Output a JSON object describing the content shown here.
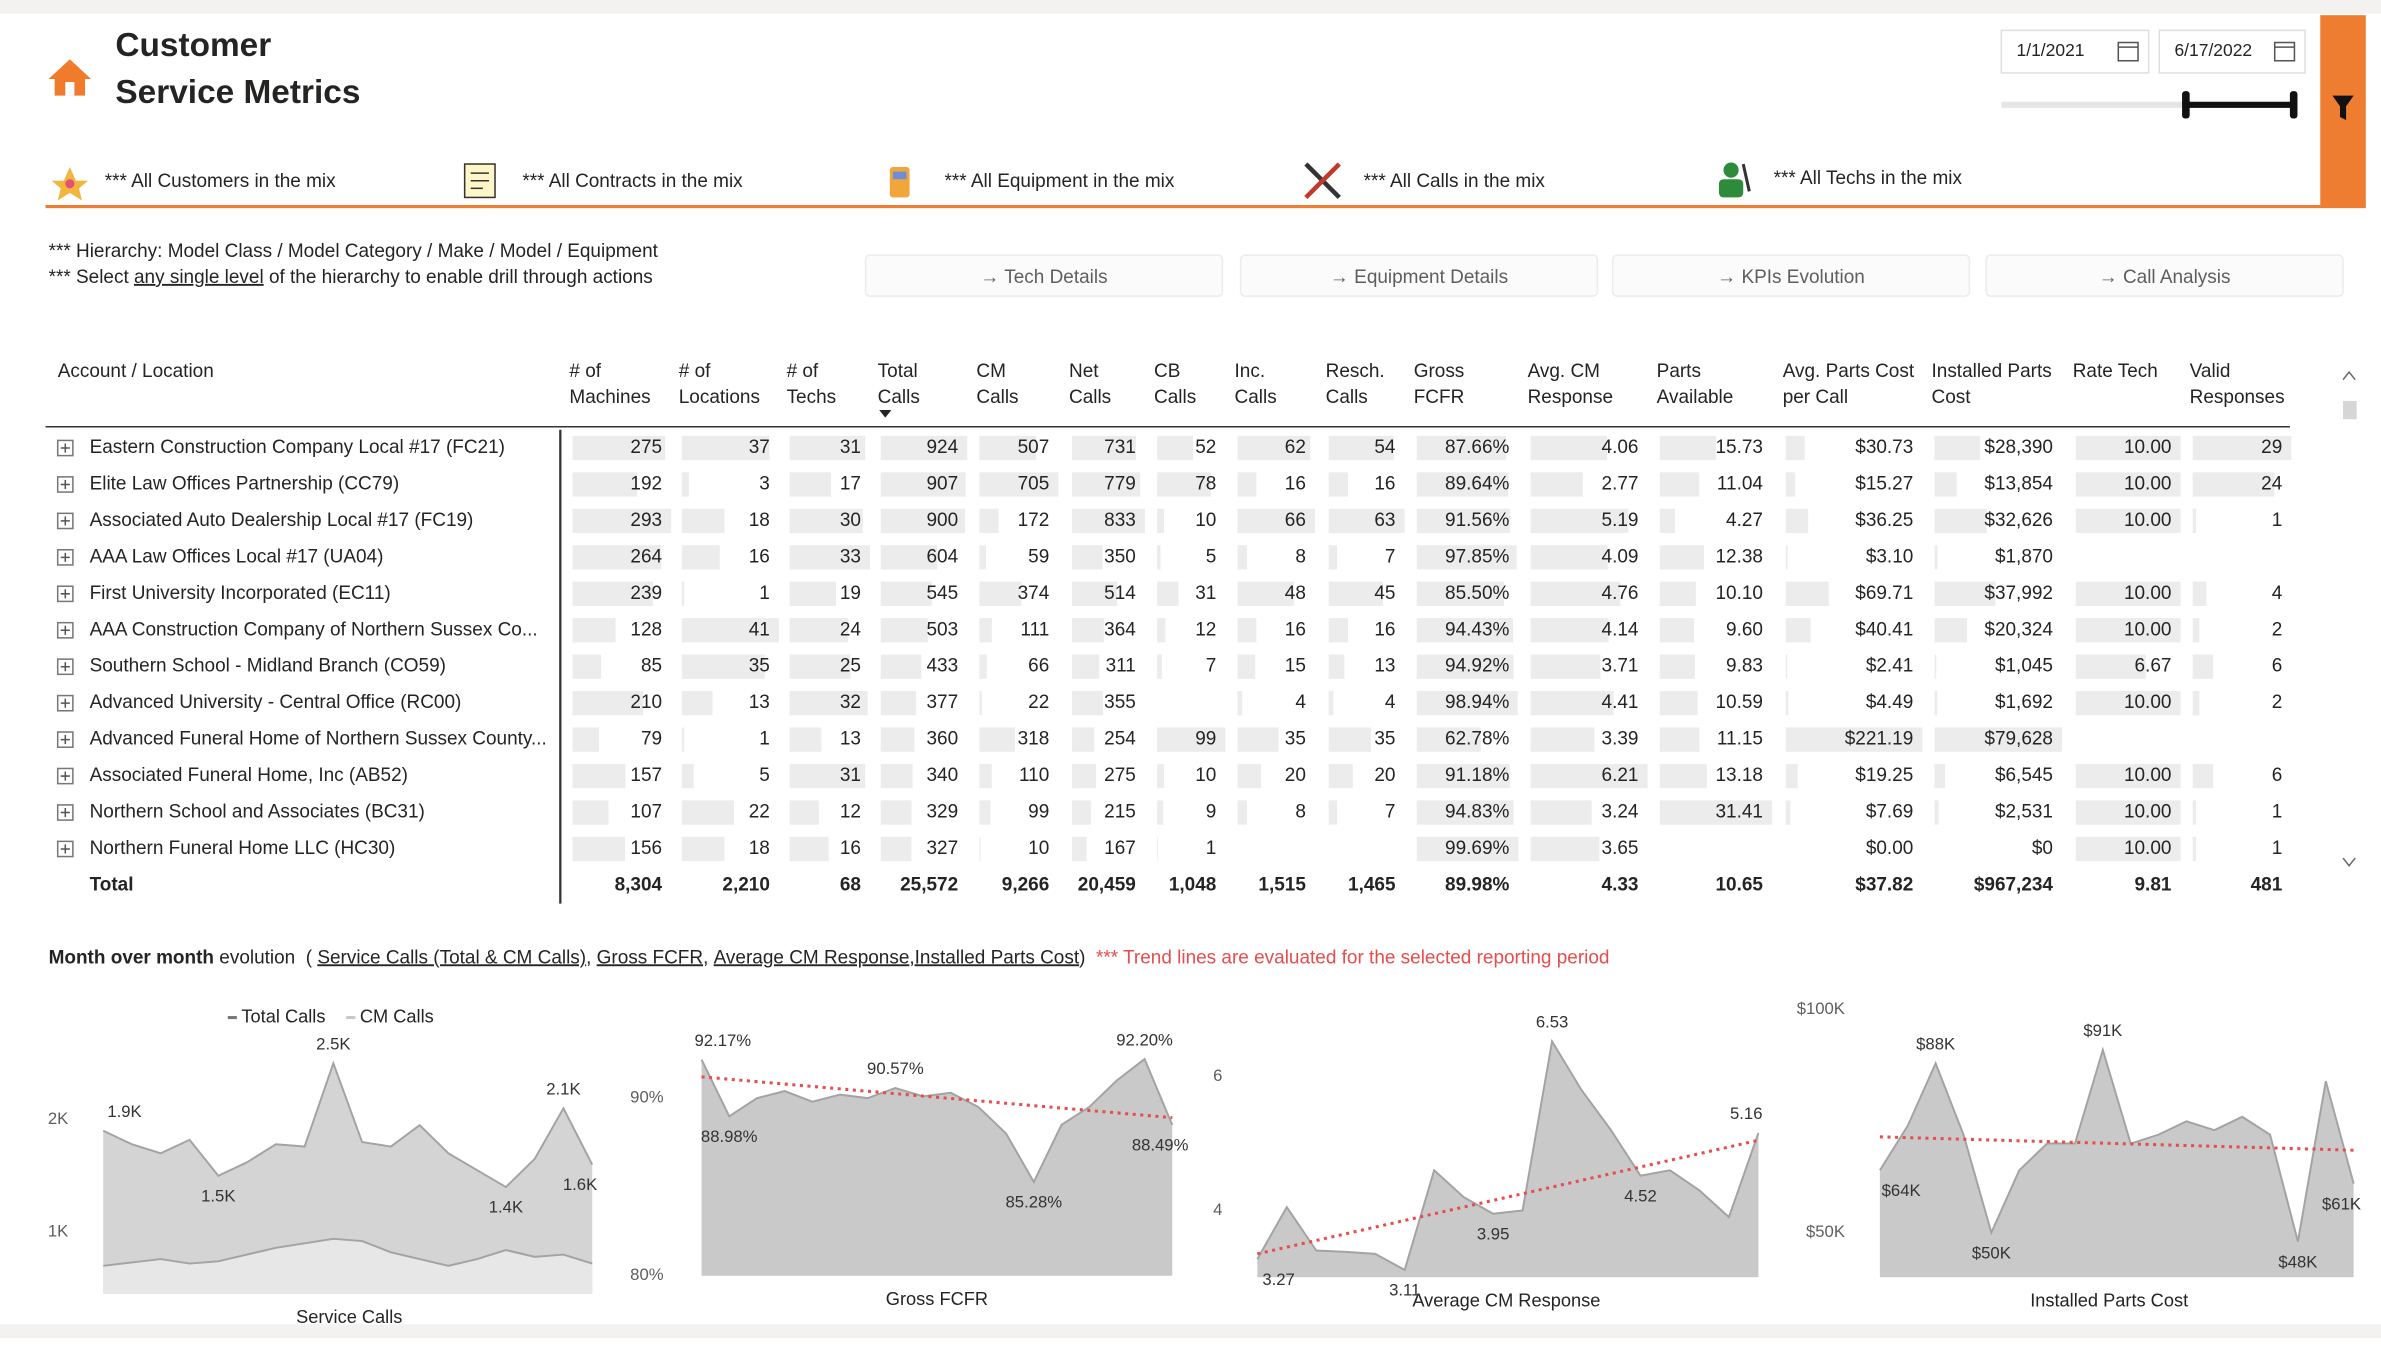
{
  "header": {
    "title_lines": [
      "Customer",
      "Service Metrics"
    ],
    "date_start": "1/1/2021",
    "date_end": "6/17/2022"
  },
  "filters": [
    "*** All Customers in the mix",
    "*** All Contracts in the mix",
    "*** All Equipment in the mix",
    "*** All Calls in the mix",
    "*** All Techs in the mix"
  ],
  "notes": [
    [
      {
        "text": "*** Hierarchy: Model Class / Model Category / Make / Model / Equipment"
      }
    ],
    [
      {
        "text": "*** Select "
      },
      {
        "text": "any single level",
        "style": "underline"
      },
      {
        "text": " of the hierarchy to enable drill through actions"
      }
    ]
  ],
  "buttons": [
    "→ Tech Details",
    "→ Equipment Details",
    "→ KPIs Evolution",
    "→ Call Analysis"
  ],
  "table": {
    "row_header": "Account / Location",
    "columns": [
      [
        "# of",
        "Machines"
      ],
      [
        "# of",
        "Locations"
      ],
      [
        "# of",
        "Techs"
      ],
      [
        "Total",
        "Calls"
      ],
      [
        "CM",
        "Calls"
      ],
      [
        "Net",
        "Calls"
      ],
      [
        "CB",
        "Calls"
      ],
      [
        "Inc.",
        "Calls"
      ],
      [
        "Resch.",
        "Calls"
      ],
      [
        "Gross",
        "FCFR"
      ],
      [
        "Avg. CM",
        "Response"
      ],
      [
        "Parts",
        "Available"
      ],
      [
        "Avg. Parts Cost",
        "per Call"
      ],
      [
        "Installed Parts",
        "Cost"
      ],
      [
        "Rate Tech"
      ],
      [
        "Valid",
        "Responses"
      ]
    ],
    "rows": [
      {
        "name": "Eastern Construction Company Local #17 (FC21)",
        "cells": [
          "275",
          "37",
          "31",
          "924",
          "507",
          "731",
          "52",
          "62",
          "54",
          "87.66%",
          "4.06",
          "15.73",
          "$30.73",
          "$28,390",
          "10.00",
          "29"
        ]
      },
      {
        "name": "Elite Law Offices Partnership (CC79)",
        "cells": [
          "192",
          "3",
          "17",
          "907",
          "705",
          "779",
          "78",
          "16",
          "16",
          "89.64%",
          "2.77",
          "11.04",
          "$15.27",
          "$13,854",
          "10.00",
          "24"
        ]
      },
      {
        "name": "Associated Auto Dealership Local #17 (FC19)",
        "cells": [
          "293",
          "18",
          "30",
          "900",
          "172",
          "833",
          "10",
          "66",
          "63",
          "91.56%",
          "5.19",
          "4.27",
          "$36.25",
          "$32,626",
          "10.00",
          "1"
        ]
      },
      {
        "name": "AAA Law Offices Local #17 (UA04)",
        "cells": [
          "264",
          "16",
          "33",
          "604",
          "59",
          "350",
          "5",
          "8",
          "7",
          "97.85%",
          "4.09",
          "12.38",
          "$3.10",
          "$1,870",
          null,
          null
        ]
      },
      {
        "name": "First University Incorporated (EC11)",
        "cells": [
          "239",
          "1",
          "19",
          "545",
          "374",
          "514",
          "31",
          "48",
          "45",
          "85.50%",
          "4.76",
          "10.10",
          "$69.71",
          "$37,992",
          "10.00",
          "4"
        ]
      },
      {
        "name": "AAA Construction Company of Northern Sussex Co...",
        "cells": [
          "128",
          "41",
          "24",
          "503",
          "111",
          "364",
          "12",
          "16",
          "16",
          "94.43%",
          "4.14",
          "9.60",
          "$40.41",
          "$20,324",
          "10.00",
          "2"
        ]
      },
      {
        "name": "Southern School - Midland Branch (CO59)",
        "cells": [
          "85",
          "35",
          "25",
          "433",
          "66",
          "311",
          "7",
          "15",
          "13",
          "94.92%",
          "3.71",
          "9.83",
          "$2.41",
          "$1,045",
          "6.67",
          "6"
        ]
      },
      {
        "name": "Advanced University - Central Office (RC00)",
        "cells": [
          "210",
          "13",
          "32",
          "377",
          "22",
          "355",
          null,
          "4",
          "4",
          "98.94%",
          "4.41",
          "10.59",
          "$4.49",
          "$1,692",
          "10.00",
          "2"
        ]
      },
      {
        "name": "Advanced Funeral Home of Northern Sussex County...",
        "cells": [
          "79",
          "1",
          "13",
          "360",
          "318",
          "254",
          "99",
          "35",
          "35",
          "62.78%",
          "3.39",
          "11.15",
          "$221.19",
          "$79,628",
          null,
          null
        ]
      },
      {
        "name": "Associated Funeral Home, Inc (AB52)",
        "cells": [
          "157",
          "5",
          "31",
          "340",
          "110",
          "275",
          "10",
          "20",
          "20",
          "91.18%",
          "6.21",
          "13.18",
          "$19.25",
          "$6,545",
          "10.00",
          "6"
        ]
      },
      {
        "name": "Northern School and Associates (BC31)",
        "cells": [
          "107",
          "22",
          "12",
          "329",
          "99",
          "215",
          "9",
          "8",
          "7",
          "94.83%",
          "3.24",
          "31.41",
          "$7.69",
          "$2,531",
          "10.00",
          "1"
        ]
      },
      {
        "name": "Northern Funeral Home LLC (HC30)",
        "cells": [
          "156",
          "18",
          "16",
          "327",
          "10",
          "167",
          "1",
          null,
          null,
          "99.69%",
          "3.65",
          null,
          "$0.00",
          "$0",
          "10.00",
          "1"
        ]
      }
    ],
    "total": {
      "name": "Total",
      "cells": [
        "8,304",
        "2,210",
        "68",
        "25,572",
        "9,266",
        "20,459",
        "1,048",
        "1,515",
        "1,465",
        "89.98%",
        "4.33",
        "10.65",
        "$37.82",
        "$967,234",
        "9.81",
        "481"
      ]
    }
  },
  "evolution_heading": [
    {
      "text": "Month over month",
      "style": "bold"
    },
    {
      "text": " evolution  ( "
    },
    {
      "text": "Service Calls (Total & CM Calls)",
      "style": "underline"
    },
    {
      "text": ", "
    },
    {
      "text": "Gross FCFR",
      "style": "underline"
    },
    {
      "text": ", "
    },
    {
      "text": "Average CM Response",
      "style": "underline"
    },
    {
      "text": ",",
      "style": "underline"
    },
    {
      "text": "Installed Parts Cost",
      "style": "underline"
    },
    {
      "text": ")  "
    },
    {
      "text": "*** Trend lines are evaluated for the selected reporting period",
      "color": "#e84c4c"
    }
  ],
  "chart_data": [
    {
      "type": "area",
      "x_label": "Service Calls",
      "ylim": [
        450,
        2650
      ],
      "yticks": [
        {
          "value": 1000,
          "label": "1K"
        },
        {
          "value": 2000,
          "label": "2K"
        }
      ],
      "legend": true,
      "series": [
        {
          "name": "Total Calls",
          "color": "#d2d2d2",
          "values": [
            1900,
            1780,
            1700,
            1820,
            1500,
            1620,
            1780,
            1760,
            2500,
            1800,
            1760,
            1950,
            1700,
            1550,
            1400,
            1650,
            2100,
            1600
          ],
          "value_labels": [
            "1.9K",
            null,
            null,
            null,
            "1.5K",
            null,
            null,
            null,
            "2.5K",
            null,
            null,
            null,
            null,
            null,
            "1.4K",
            null,
            "2.1K",
            "1.6K"
          ]
        },
        {
          "name": "CM Calls",
          "color": "#e8e8e8",
          "values": [
            700,
            730,
            760,
            720,
            740,
            800,
            860,
            900,
            940,
            920,
            820,
            760,
            700,
            760,
            840,
            780,
            800,
            720
          ]
        }
      ]
    },
    {
      "type": "area",
      "x_label": "Gross FCFR",
      "ylim": [
        80,
        93
      ],
      "yticks": [
        {
          "value": 80,
          "label": "80%"
        },
        {
          "value": 90,
          "label": "90%"
        }
      ],
      "series": [
        {
          "name": "Gross FCFR",
          "color": "#c6c6c6",
          "values": [
            92.17,
            88.98,
            90.0,
            90.4,
            89.8,
            90.2,
            90.0,
            90.57,
            90.1,
            90.3,
            89.5,
            88.0,
            85.28,
            88.5,
            89.5,
            91.0,
            92.2,
            88.49
          ],
          "value_labels": [
            "92.17%",
            "88.98%",
            null,
            null,
            null,
            null,
            null,
            "90.57%",
            null,
            null,
            null,
            null,
            "85.28%",
            null,
            null,
            null,
            "92.20%",
            "88.49%"
          ]
        }
      ],
      "trend": {
        "color": "#e84c4c",
        "values": [
          91.2,
          88.9
        ]
      }
    },
    {
      "type": "area",
      "x_label": "Average CM Response",
      "ylim": [
        3.0,
        6.65
      ],
      "yticks": [
        4,
        6
      ],
      "series": [
        {
          "name": "Average CM Response",
          "color": "#c6c6c6",
          "values": [
            3.27,
            4.05,
            3.4,
            3.38,
            3.35,
            3.11,
            4.6,
            4.2,
            3.95,
            4.0,
            6.53,
            5.8,
            5.2,
            4.52,
            4.6,
            4.3,
            3.9,
            5.16
          ],
          "value_labels": [
            "3.27",
            null,
            null,
            null,
            null,
            "3.11",
            null,
            null,
            "3.95",
            null,
            "6.53",
            null,
            null,
            "4.52",
            null,
            null,
            null,
            "5.16"
          ]
        }
      ],
      "trend": {
        "color": "#e84c4c",
        "values": [
          3.35,
          5.05
        ]
      }
    },
    {
      "type": "area",
      "x_label": "Installed Parts Cost",
      "ylim": [
        40000,
        101000
      ],
      "yticks": [
        {
          "value": 50000,
          "label": "$50K"
        },
        {
          "value": 100000,
          "label": "$100K"
        }
      ],
      "series": [
        {
          "name": "Installed Parts Cost",
          "color": "#c6c6c6",
          "values": [
            64000,
            74000,
            88000,
            72000,
            50000,
            64000,
            70000,
            70000,
            91000,
            70000,
            72000,
            75000,
            73000,
            76000,
            72000,
            48000,
            84000,
            61000
          ],
          "value_labels": [
            "$64K",
            null,
            "$88K",
            null,
            "$50K",
            null,
            null,
            null,
            "$91K",
            null,
            null,
            null,
            null,
            null,
            null,
            "$48K",
            null,
            "$61K"
          ]
        }
      ],
      "trend": {
        "color": "#e84c4c",
        "values": [
          71500,
          68500
        ]
      }
    }
  ]
}
